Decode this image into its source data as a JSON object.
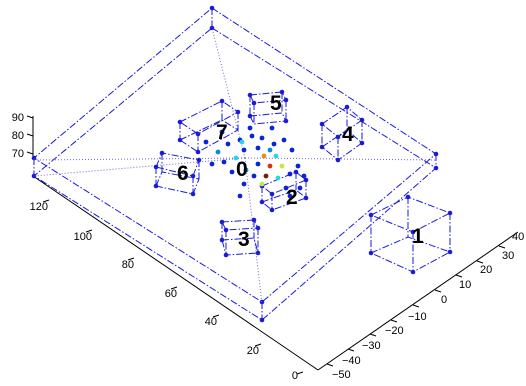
{
  "chart_data": {
    "type": "scatter3d",
    "title": "",
    "axes": {
      "x": {
        "ticks": [
          "0",
          "20",
          "40",
          "60",
          "80",
          "100",
          "120"
        ]
      },
      "y": {
        "ticks": [
          "−50",
          "−40",
          "−30",
          "−20",
          "−10",
          "0",
          "10",
          "20",
          "30",
          "40"
        ]
      },
      "z": {
        "ticks": [
          "70",
          "80",
          "90"
        ]
      }
    },
    "nodes": [
      "0",
      "1",
      "2",
      "3",
      "4",
      "5",
      "6",
      "7"
    ],
    "colors": {
      "frame": "#1a1adc",
      "points": [
        "#0a24d8",
        "#0a8ad8",
        "#2ad4e8",
        "#c8e838",
        "#e88a20",
        "#d83010",
        "#7a1a10"
      ]
    }
  }
}
